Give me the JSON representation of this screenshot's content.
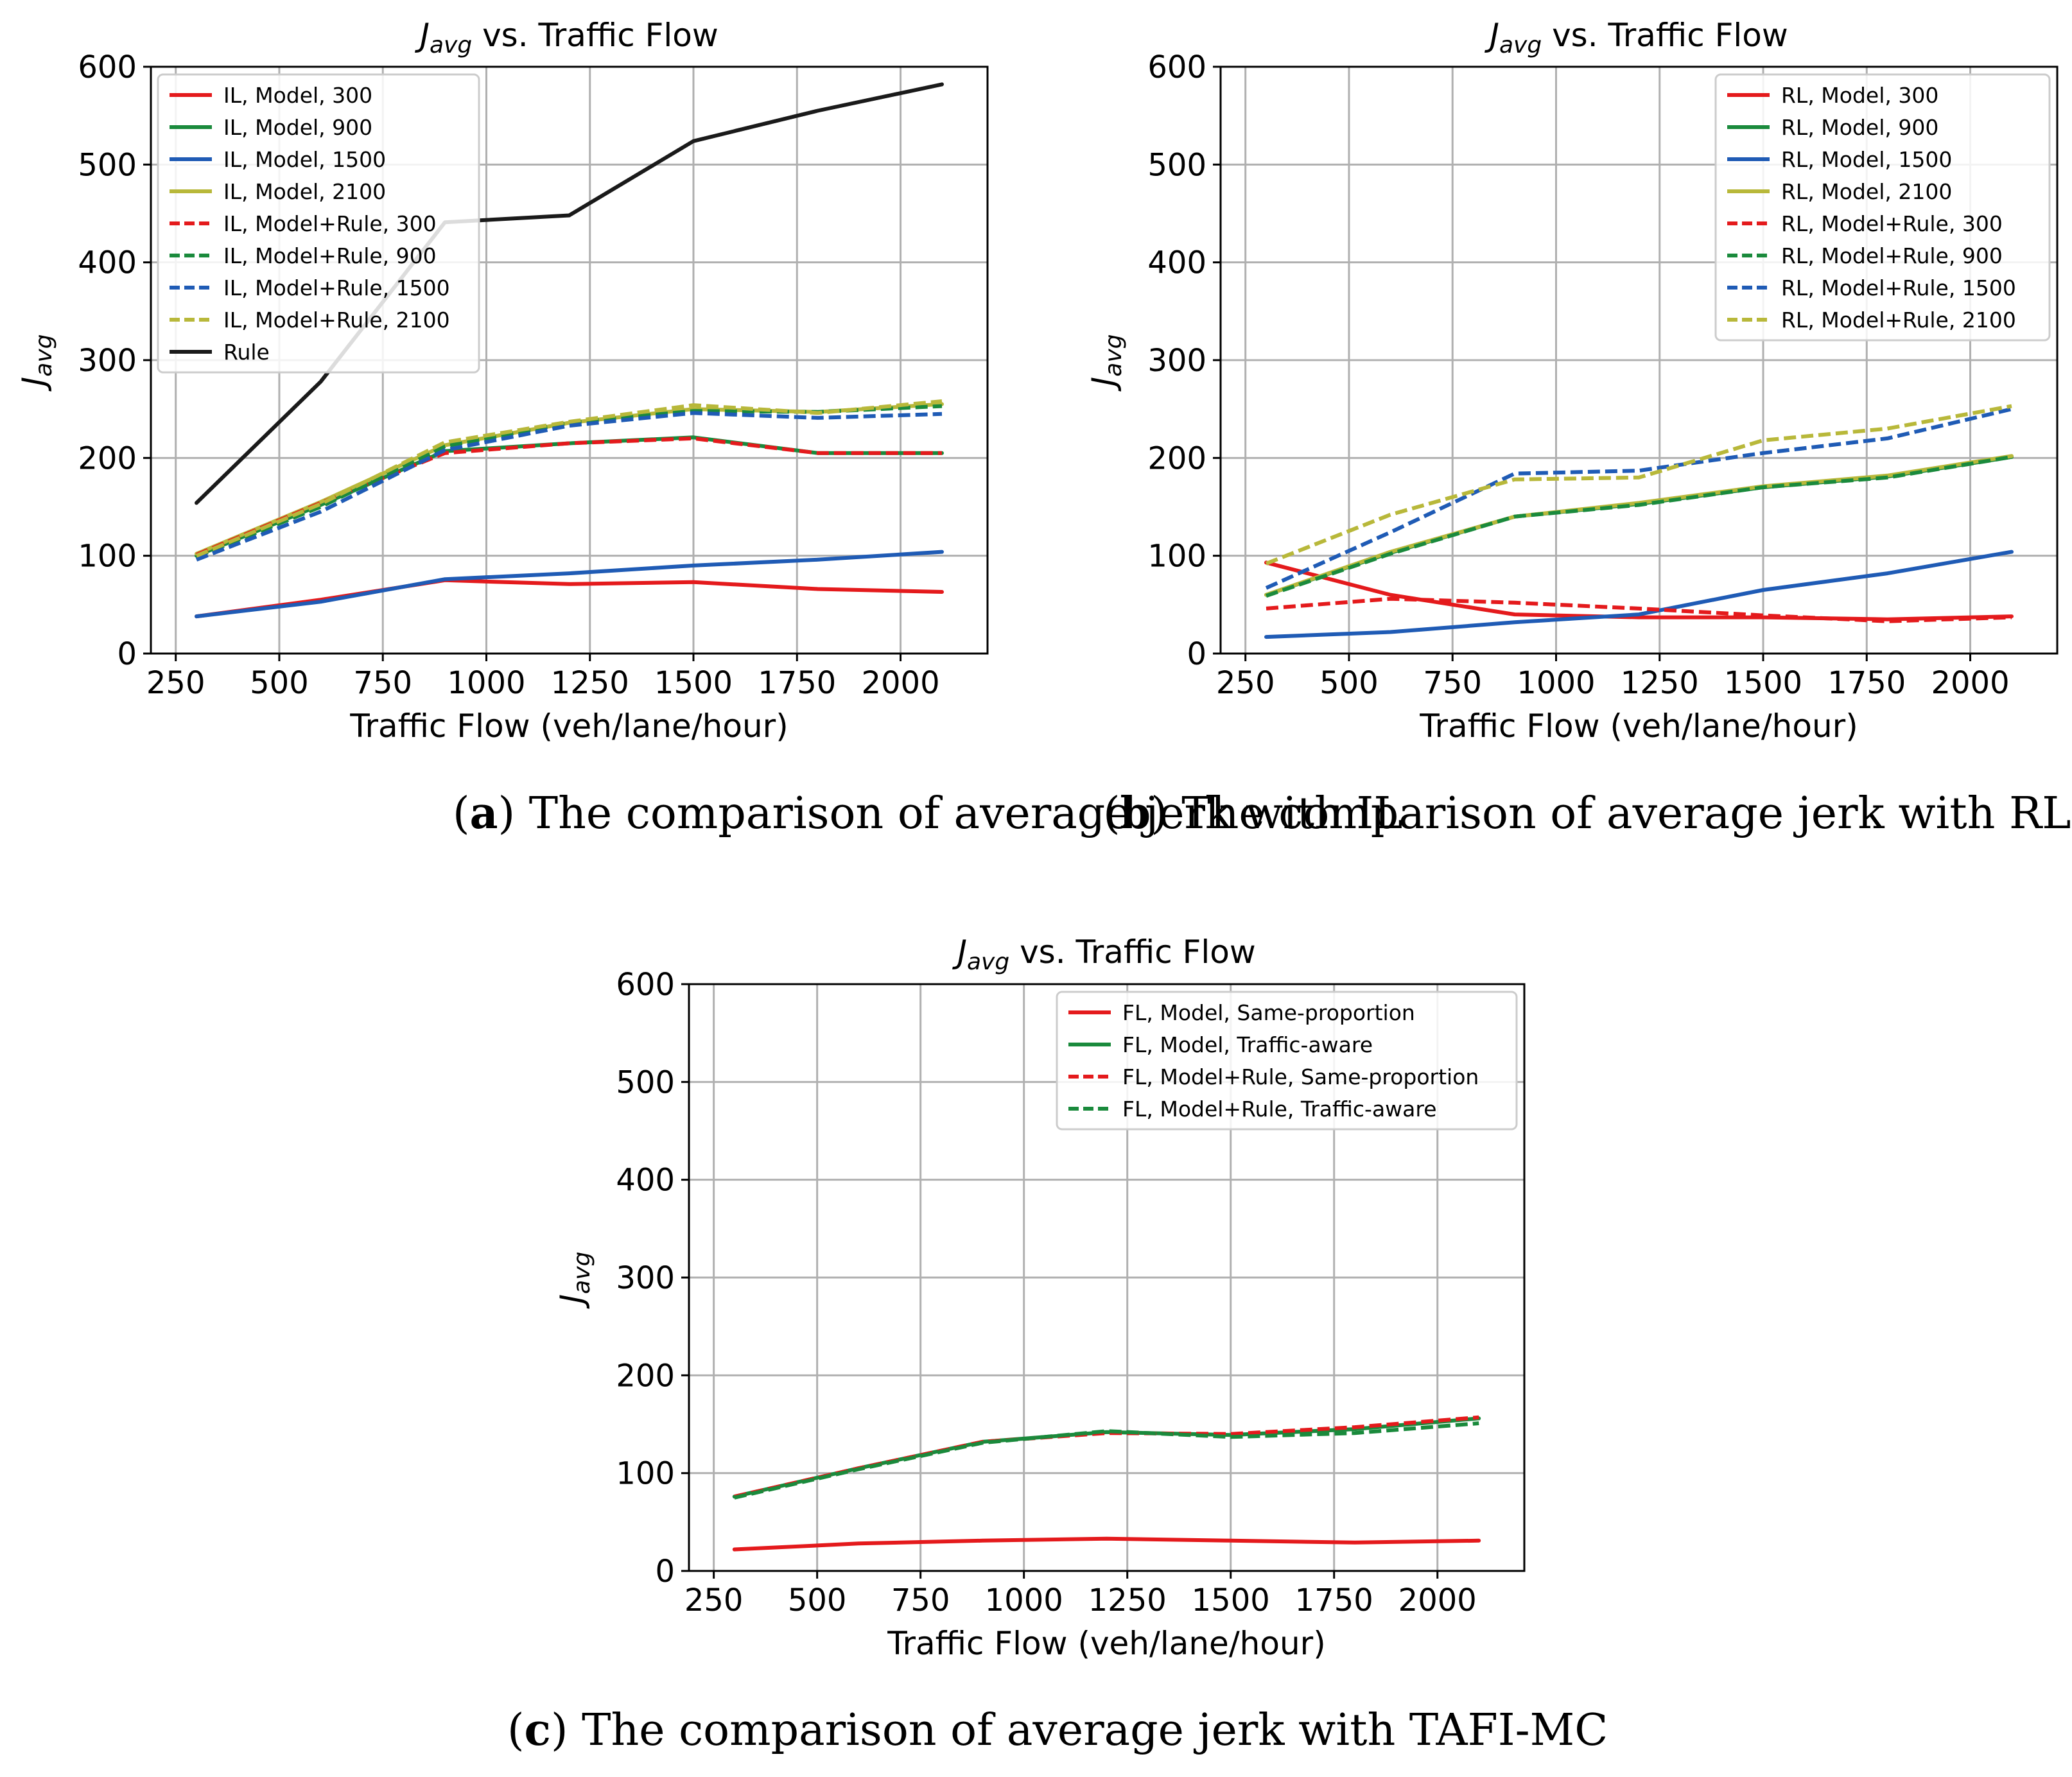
{
  "chart_data": [
    {
      "type": "line",
      "title": "J_avg vs. Traffic Flow",
      "title_symbol": "J",
      "title_subscript": "avg",
      "title_rest": " vs. Traffic Flow",
      "xlabel": "Traffic Flow (veh/lane/hour)",
      "ylabel_symbol": "J",
      "ylabel_subscript": "avg",
      "xlim": [
        190,
        2210
      ],
      "ylim": [
        0,
        600
      ],
      "xticks": [
        250,
        500,
        750,
        1000,
        1250,
        1500,
        1750,
        2000
      ],
      "yticks": [
        0,
        100,
        200,
        300,
        400,
        500,
        600
      ],
      "x": [
        300,
        600,
        900,
        1200,
        1500,
        1800,
        2100
      ],
      "grid": true,
      "legend_position": "top-left",
      "caption_letter": "a",
      "caption_text": "The comparison of average jerk with IL",
      "series": [
        {
          "name": "IL, Model, 300",
          "color": "#e41a1c",
          "dash": false,
          "values": [
            38,
            55,
            75,
            71,
            73,
            66,
            63
          ]
        },
        {
          "name": "IL, Model, 900",
          "color": "#1a8a3c",
          "dash": false,
          "values": [
            100,
            152,
            207,
            215,
            221,
            205,
            205
          ]
        },
        {
          "name": "IL, Model, 1500",
          "color": "#1f5bb5",
          "dash": false,
          "values": [
            38,
            53,
            76,
            82,
            90,
            96,
            104
          ]
        },
        {
          "name": "IL, Model, 2100",
          "color": "#b8b83a",
          "dash": false,
          "values": [
            102,
            155,
            213,
            236,
            250,
            247,
            255
          ]
        },
        {
          "name": "IL, Model+Rule, 300",
          "color": "#e41a1c",
          "dash": true,
          "values": [
            101,
            154,
            205,
            215,
            220,
            205,
            205
          ]
        },
        {
          "name": "IL, Model+Rule, 900",
          "color": "#1a8a3c",
          "dash": true,
          "values": [
            99,
            150,
            212,
            236,
            248,
            247,
            253
          ]
        },
        {
          "name": "IL, Model+Rule, 1500",
          "color": "#1f5bb5",
          "dash": true,
          "values": [
            96,
            145,
            208,
            233,
            246,
            241,
            245
          ]
        },
        {
          "name": "IL, Model+Rule, 2100",
          "color": "#b8b83a",
          "dash": true,
          "values": [
            100,
            153,
            216,
            237,
            254,
            246,
            258
          ]
        },
        {
          "name": "Rule",
          "color": "#1a1a1a",
          "dash": false,
          "values": [
            154,
            278,
            441,
            448,
            524,
            555,
            582
          ]
        }
      ]
    },
    {
      "type": "line",
      "title": "J_avg vs. Traffic Flow",
      "title_symbol": "J",
      "title_subscript": "avg",
      "title_rest": " vs. Traffic Flow",
      "xlabel": "Traffic Flow (veh/lane/hour)",
      "ylabel_symbol": "J",
      "ylabel_subscript": "avg",
      "xlim": [
        190,
        2210
      ],
      "ylim": [
        0,
        600
      ],
      "xticks": [
        250,
        500,
        750,
        1000,
        1250,
        1500,
        1750,
        2000
      ],
      "yticks": [
        0,
        100,
        200,
        300,
        400,
        500,
        600
      ],
      "x": [
        300,
        600,
        900,
        1200,
        1500,
        1800,
        2100
      ],
      "grid": true,
      "legend_position": "top-right",
      "caption_letter": "b",
      "caption_text": "The comparison of average jerk with RL",
      "series": [
        {
          "name": "RL, Model, 300",
          "color": "#e41a1c",
          "dash": false,
          "values": [
            93,
            60,
            40,
            37,
            37,
            35,
            38
          ]
        },
        {
          "name": "RL, Model, 900",
          "color": "#1a8a3c",
          "dash": false,
          "values": [
            60,
            103,
            140,
            153,
            170,
            181,
            201
          ]
        },
        {
          "name": "RL, Model, 1500",
          "color": "#1f5bb5",
          "dash": false,
          "values": [
            17,
            22,
            32,
            40,
            65,
            82,
            104
          ]
        },
        {
          "name": "RL, Model, 2100",
          "color": "#b8b83a",
          "dash": false,
          "values": [
            60,
            104,
            140,
            154,
            171,
            182,
            202
          ]
        },
        {
          "name": "RL, Model+Rule, 300",
          "color": "#e41a1c",
          "dash": true,
          "values": [
            46,
            56,
            52,
            46,
            39,
            33,
            37
          ]
        },
        {
          "name": "RL, Model+Rule, 900",
          "color": "#1a8a3c",
          "dash": true,
          "values": [
            59,
            102,
            140,
            152,
            170,
            180,
            201
          ]
        },
        {
          "name": "RL, Model+Rule, 1500",
          "color": "#1f5bb5",
          "dash": true,
          "values": [
            67,
            124,
            184,
            187,
            205,
            220,
            250
          ]
        },
        {
          "name": "RL, Model+Rule, 2100",
          "color": "#b8b83a",
          "dash": true,
          "values": [
            92,
            142,
            178,
            180,
            218,
            230,
            253
          ]
        }
      ]
    },
    {
      "type": "line",
      "title": "J_avg vs. Traffic Flow",
      "title_symbol": "J",
      "title_subscript": "avg",
      "title_rest": " vs. Traffic Flow",
      "xlabel": "Traffic Flow (veh/lane/hour)",
      "ylabel_symbol": "J",
      "ylabel_subscript": "avg",
      "xlim": [
        190,
        2210
      ],
      "ylim": [
        0,
        600
      ],
      "xticks": [
        250,
        500,
        750,
        1000,
        1250,
        1500,
        1750,
        2000
      ],
      "yticks": [
        0,
        100,
        200,
        300,
        400,
        500,
        600
      ],
      "x": [
        300,
        600,
        900,
        1200,
        1500,
        1800,
        2100
      ],
      "grid": true,
      "legend_position": "top-right",
      "caption_letter": "c",
      "caption_text": "The comparison of average jerk with TAFI-MC",
      "series": [
        {
          "name": "FL, Model, Same-proportion",
          "color": "#e41a1c",
          "dash": false,
          "values": [
            22,
            28,
            31,
            33,
            31,
            29,
            31
          ]
        },
        {
          "name": "FL, Model, Traffic-aware",
          "color": "#1a8a3c",
          "dash": false,
          "values": [
            76,
            105,
            132,
            142,
            139,
            145,
            156
          ]
        },
        {
          "name": "FL, Model+Rule, Same-proportion",
          "color": "#e41a1c",
          "dash": true,
          "values": [
            76,
            105,
            132,
            141,
            140,
            147,
            157
          ]
        },
        {
          "name": "FL, Model+Rule, Traffic-aware",
          "color": "#1a8a3c",
          "dash": true,
          "values": [
            75,
            104,
            131,
            143,
            137,
            141,
            151
          ]
        }
      ]
    }
  ]
}
